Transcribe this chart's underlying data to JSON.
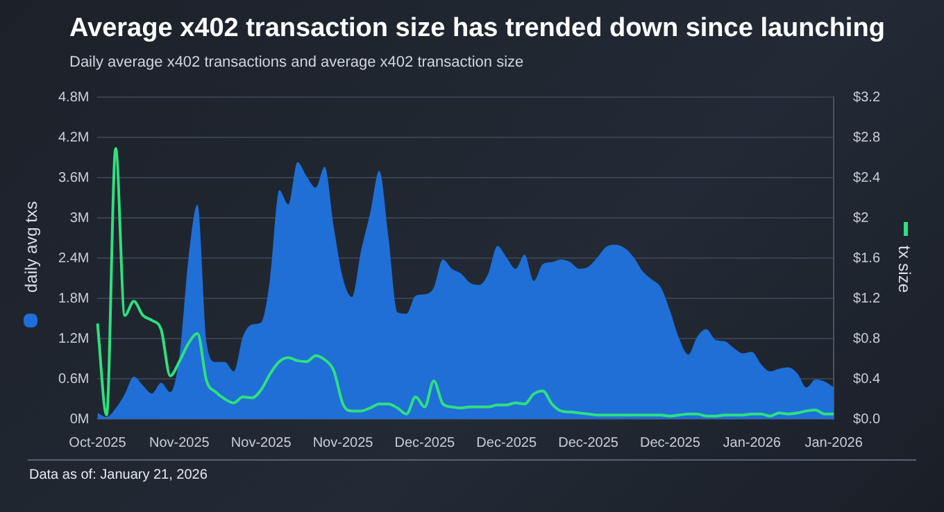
{
  "chart_data": {
    "type": "line",
    "title": "Average x402 transaction size has trended down since launching",
    "subtitle": "Daily average x402 transactions and average x402 transaction size",
    "ylabel": "daily avg txs",
    "y2label": "tx size",
    "categories": [
      "Oct-2025",
      null,
      null,
      null,
      null,
      null,
      null,
      null,
      null,
      "Nov-2025",
      null,
      null,
      null,
      null,
      null,
      null,
      null,
      null,
      "Nov-2025",
      null,
      null,
      null,
      null,
      null,
      null,
      null,
      null,
      "Nov-2025",
      null,
      null,
      null,
      null,
      null,
      null,
      null,
      null,
      "Dec-2025",
      null,
      null,
      null,
      null,
      null,
      null,
      null,
      null,
      "Dec-2025",
      null,
      null,
      null,
      null,
      null,
      null,
      null,
      null,
      "Dec-2025",
      null,
      null,
      null,
      null,
      null,
      null,
      null,
      null,
      "Dec-2025",
      null,
      null,
      null,
      null,
      null,
      null,
      null,
      null,
      "Jan-2026",
      null,
      null,
      null,
      null,
      null,
      null,
      null,
      null,
      "Jan-2026"
    ],
    "series": [
      {
        "type": "area",
        "color": "#1f6fd6",
        "values": [
          0.09,
          0.03,
          0.16,
          0.37,
          0.63,
          0.5,
          0.38,
          0.54,
          0.4,
          0.92,
          2.38,
          3.2,
          1.13,
          0.85,
          0.85,
          0.71,
          1.23,
          1.41,
          1.44,
          2.1,
          3.41,
          3.2,
          3.83,
          3.62,
          3.45,
          3.76,
          2.86,
          2.1,
          1.82,
          2.51,
          3.07,
          3.7,
          2.72,
          1.59,
          1.57,
          1.84,
          1.86,
          1.96,
          2.38,
          2.24,
          2.17,
          2.03,
          2.0,
          2.17,
          2.58,
          2.41,
          2.24,
          2.45,
          2.06,
          2.31,
          2.34,
          2.38,
          2.34,
          2.24,
          2.27,
          2.41,
          2.57,
          2.6,
          2.55,
          2.41,
          2.2,
          2.08,
          1.96,
          1.61,
          1.2,
          0.96,
          1.23,
          1.34,
          1.18,
          1.16,
          1.06,
          0.98,
          1.0,
          0.82,
          0.71,
          0.75,
          0.77,
          0.68,
          0.47,
          0.59,
          0.56,
          0.47
        ]
      },
      {
        "type": "line",
        "axis": "y2",
        "color": "#2ee07f",
        "values": [
          0.95,
          0.04,
          2.69,
          1.03,
          1.17,
          1.03,
          0.98,
          0.89,
          0.43,
          0.57,
          0.75,
          0.85,
          0.38,
          0.27,
          0.2,
          0.16,
          0.22,
          0.21,
          0.29,
          0.45,
          0.57,
          0.61,
          0.58,
          0.57,
          0.63,
          0.59,
          0.48,
          0.15,
          0.08,
          0.08,
          0.11,
          0.15,
          0.15,
          0.11,
          0.05,
          0.22,
          0.12,
          0.38,
          0.15,
          0.12,
          0.11,
          0.12,
          0.12,
          0.12,
          0.14,
          0.14,
          0.16,
          0.15,
          0.25,
          0.28,
          0.15,
          0.08,
          0.07,
          0.06,
          0.05,
          0.04,
          0.04,
          0.04,
          0.04,
          0.04,
          0.04,
          0.04,
          0.04,
          0.03,
          0.04,
          0.05,
          0.05,
          0.03,
          0.03,
          0.04,
          0.04,
          0.04,
          0.05,
          0.05,
          0.03,
          0.06,
          0.05,
          0.06,
          0.08,
          0.09,
          0.05,
          0.05
        ]
      }
    ],
    "ylim": [
      0,
      4.8
    ],
    "yticks": [
      {
        "value": 0,
        "label": "0M"
      },
      {
        "value": 0.6,
        "label": "0.6M"
      },
      {
        "value": 1.2,
        "label": "1.2M"
      },
      {
        "value": 1.8,
        "label": "1.8M"
      },
      {
        "value": 2.4,
        "label": "2.4M"
      },
      {
        "value": 3,
        "label": "3M"
      },
      {
        "value": 3.6,
        "label": "3.6M"
      },
      {
        "value": 4.2,
        "label": "4.2M"
      },
      {
        "value": 4.8,
        "label": "4.8M"
      }
    ],
    "y2lim": [
      0,
      3.2
    ],
    "y2ticks": [
      {
        "value": 0,
        "label": "$0.0"
      },
      {
        "value": 0.4,
        "label": "$0.4"
      },
      {
        "value": 0.8,
        "label": "$0.8"
      },
      {
        "value": 1.2,
        "label": "$1.2"
      },
      {
        "value": 1.6,
        "label": "$1.6"
      },
      {
        "value": 2,
        "label": "$2"
      },
      {
        "value": 2.4,
        "label": "$2.4"
      },
      {
        "value": 2.8,
        "label": "$2.8"
      },
      {
        "value": 3.2,
        "label": "$3.2"
      }
    ],
    "grid": "y",
    "legend": false,
    "annotations": [
      "Data as of: January 21, 2026"
    ]
  }
}
